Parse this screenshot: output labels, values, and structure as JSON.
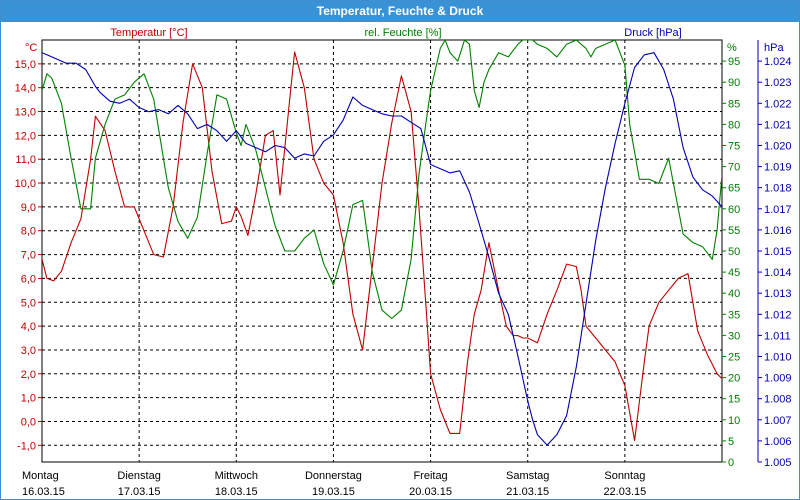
{
  "window": {
    "title": "Temperatur, Feuchte & Druck"
  },
  "colors": {
    "temperature": "#c00000",
    "humidity": "#008000",
    "pressure": "#0000b0",
    "title_bar": "#3a92d6"
  },
  "chart_data": {
    "type": "line",
    "title": "Temperatur, Feuchte & Druck",
    "grid": true,
    "x_range": [
      0,
      7
    ],
    "x_labels": [
      {
        "day": "Montag",
        "date": "16.03.15"
      },
      {
        "day": "Dienstag",
        "date": "17.03.15"
      },
      {
        "day": "Mittwoch",
        "date": "18.03.15"
      },
      {
        "day": "Donnerstag",
        "date": "19.03.15"
      },
      {
        "day": "Freitag",
        "date": "20.03.15"
      },
      {
        "day": "Samstag",
        "date": "21.03.15"
      },
      {
        "day": "Sonntag",
        "date": "22.03.15"
      }
    ],
    "axes": {
      "temperature": {
        "label": "Temperatur [°C]",
        "unit": "°C",
        "range": [
          -1.7,
          16.0
        ],
        "ticks": [
          "-1,0",
          "0,0",
          "1,0",
          "2,0",
          "3,0",
          "4,0",
          "5,0",
          "6,0",
          "7,0",
          "8,0",
          "9,0",
          "10,0",
          "11,0",
          "12,0",
          "13,0",
          "14,0",
          "15,0"
        ]
      },
      "humidity": {
        "label": "rel. Feuchte [%]",
        "unit": "%",
        "range": [
          0,
          100
        ],
        "ticks": [
          "0",
          "5",
          "10",
          "15",
          "20",
          "25",
          "30",
          "35",
          "40",
          "45",
          "50",
          "55",
          "60",
          "65",
          "70",
          "75",
          "80",
          "85",
          "90",
          "95"
        ]
      },
      "pressure": {
        "label": "Druck [hPa]",
        "unit": "hPa",
        "range": [
          1.005,
          1.025
        ],
        "ticks": [
          "1.005",
          "1.006",
          "1.007",
          "1.008",
          "1.009",
          "1.010",
          "1.011",
          "1.012",
          "1.013",
          "1.014",
          "1.015",
          "1.016",
          "1.017",
          "1.018",
          "1.019",
          "1.020",
          "1.021",
          "1.022",
          "1.023",
          "1.024"
        ]
      }
    },
    "series": [
      {
        "name": "Temperatur [°C]",
        "axis": "temperature",
        "x": [
          0,
          0.05,
          0.12,
          0.2,
          0.3,
          0.4,
          0.5,
          0.55,
          0.65,
          0.75,
          0.85,
          0.95,
          1.05,
          1.15,
          1.25,
          1.35,
          1.45,
          1.55,
          1.65,
          1.75,
          1.85,
          1.95,
          2.0,
          2.05,
          2.12,
          2.2,
          2.3,
          2.38,
          2.45,
          2.55,
          2.6,
          2.7,
          2.8,
          2.9,
          3.0,
          3.1,
          3.2,
          3.3,
          3.4,
          3.5,
          3.6,
          3.7,
          3.8,
          3.88,
          3.95,
          4.0,
          4.1,
          4.2,
          4.3,
          4.38,
          4.45,
          4.52,
          4.6,
          4.7,
          4.78,
          4.85,
          4.9,
          4.95,
          5.0,
          5.1,
          5.2,
          5.3,
          5.4,
          5.5,
          5.55,
          5.6,
          5.7,
          5.8,
          5.9,
          6.0,
          6.1,
          6.2,
          6.25,
          6.35,
          6.45,
          6.55,
          6.65,
          6.75,
          6.85,
          6.95,
          7.0
        ],
        "y": [
          6.8,
          6.0,
          5.9,
          6.3,
          7.5,
          8.5,
          11.0,
          12.8,
          12.2,
          10.5,
          9.0,
          9.0,
          8.0,
          7.0,
          6.9,
          9.0,
          12.5,
          15.0,
          14.0,
          10.5,
          8.3,
          8.4,
          9.0,
          8.6,
          7.8,
          9.5,
          12.0,
          12.2,
          9.5,
          13.5,
          15.5,
          14.0,
          11.0,
          10.0,
          9.5,
          7.5,
          4.5,
          3.0,
          6.5,
          10.0,
          12.5,
          14.5,
          13.0,
          9.0,
          5.0,
          2.0,
          0.5,
          -0.5,
          -0.5,
          2.5,
          4.5,
          5.5,
          7.5,
          5.5,
          4.0,
          3.6,
          3.6,
          3.5,
          3.5,
          3.3,
          4.5,
          5.5,
          6.6,
          6.5,
          5.5,
          4.0,
          3.5,
          3.0,
          2.5,
          1.5,
          -0.8,
          2.5,
          4.0,
          5.0,
          5.5,
          6.0,
          6.2,
          3.8,
          2.8,
          2.0,
          1.8
        ]
      },
      {
        "name": "rel. Feuchte [%]",
        "axis": "humidity",
        "x": [
          0,
          0.05,
          0.1,
          0.2,
          0.3,
          0.4,
          0.5,
          0.55,
          0.65,
          0.75,
          0.85,
          0.95,
          1.05,
          1.15,
          1.25,
          1.3,
          1.4,
          1.5,
          1.6,
          1.7,
          1.8,
          1.9,
          2.0,
          2.05,
          2.1,
          2.2,
          2.3,
          2.4,
          2.5,
          2.6,
          2.7,
          2.8,
          2.9,
          3.0,
          3.1,
          3.2,
          3.3,
          3.4,
          3.5,
          3.6,
          3.7,
          3.8,
          3.88,
          3.95,
          4.0,
          4.05,
          4.1,
          4.15,
          4.2,
          4.28,
          4.35,
          4.4,
          4.45,
          4.5,
          4.55,
          4.6,
          4.7,
          4.8,
          4.9,
          4.95,
          5.0,
          5.05,
          5.1,
          5.2,
          5.3,
          5.4,
          5.5,
          5.6,
          5.65,
          5.7,
          5.8,
          5.9,
          6.0,
          6.05,
          6.15,
          6.25,
          6.35,
          6.45,
          6.55,
          6.6,
          6.7,
          6.8,
          6.9,
          6.95,
          7.0
        ],
        "y": [
          88,
          92,
          91,
          85,
          72,
          60,
          60,
          72,
          80,
          86,
          87,
          90,
          92,
          86,
          72,
          65,
          57,
          53,
          58,
          73,
          87,
          86,
          78,
          75,
          80,
          74,
          65,
          56,
          50,
          50,
          53,
          55,
          47,
          42,
          50,
          61,
          62,
          45,
          36,
          34,
          36,
          48,
          68,
          80,
          88,
          93,
          98,
          100,
          97,
          95,
          100,
          99,
          88,
          84,
          90,
          93,
          97,
          96,
          99,
          100,
          100,
          100,
          99,
          98,
          96,
          99,
          100,
          98,
          96,
          98,
          99,
          100,
          94,
          80,
          67,
          67,
          66,
          72,
          60,
          54,
          52,
          51,
          48,
          55,
          68
        ]
      },
      {
        "name": "Druck [hPa]",
        "axis": "pressure",
        "x": [
          0,
          0.05,
          0.15,
          0.25,
          0.35,
          0.45,
          0.55,
          0.6,
          0.7,
          0.8,
          0.9,
          1.0,
          1.1,
          1.2,
          1.3,
          1.4,
          1.5,
          1.6,
          1.7,
          1.8,
          1.9,
          2.0,
          2.1,
          2.2,
          2.3,
          2.4,
          2.5,
          2.6,
          2.7,
          2.8,
          2.9,
          3.0,
          3.1,
          3.2,
          3.3,
          3.4,
          3.5,
          3.6,
          3.7,
          3.8,
          3.9,
          4.0,
          4.1,
          4.2,
          4.3,
          4.4,
          4.5,
          4.6,
          4.7,
          4.8,
          4.9,
          5.0,
          5.05,
          5.1,
          5.2,
          5.3,
          5.4,
          5.5,
          5.6,
          5.7,
          5.8,
          5.9,
          6.0,
          6.1,
          6.2,
          6.3,
          6.4,
          6.5,
          6.6,
          6.7,
          6.8,
          6.9,
          7.0
        ],
        "y": [
          1.0244,
          1.0243,
          1.0241,
          1.0239,
          1.0239,
          1.0236,
          1.0228,
          1.0225,
          1.0221,
          1.022,
          1.0222,
          1.0218,
          1.0216,
          1.0217,
          1.0215,
          1.0219,
          1.0215,
          1.0208,
          1.021,
          1.0207,
          1.0202,
          1.0207,
          1.0201,
          1.0199,
          1.0197,
          1.02,
          1.0199,
          1.0194,
          1.0196,
          1.0195,
          1.0202,
          1.0205,
          1.0212,
          1.0223,
          1.0219,
          1.0217,
          1.0215,
          1.0214,
          1.0214,
          1.0211,
          1.0208,
          1.0191,
          1.0189,
          1.0187,
          1.0188,
          1.0178,
          1.0163,
          1.0147,
          1.013,
          1.012,
          1.01,
          1.0079,
          1.007,
          1.0063,
          1.0058,
          1.0063,
          1.0072,
          1.0095,
          1.0125,
          1.0155,
          1.018,
          1.0201,
          1.022,
          1.0237,
          1.0243,
          1.0244,
          1.0236,
          1.0222,
          1.0199,
          1.0185,
          1.0179,
          1.0176,
          1.0171
        ]
      }
    ]
  }
}
